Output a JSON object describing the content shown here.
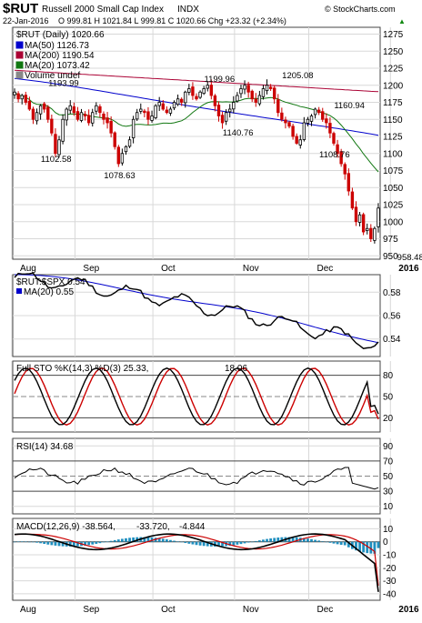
{
  "header": {
    "symbol": "$RUT",
    "name": "Russell 2000 Small Cap Index",
    "exchange": "INDX",
    "date": "22-Jan-2016",
    "ohlc": "O 999.81  H 1021.84  L 999.81  C 1020.66  Chg +23.32 (+2.34%)",
    "change_arrow": "▲",
    "watermark": "© StockCharts.com"
  },
  "chart_data": [
    {
      "type": "candlestick",
      "title": "$RUT (Daily) 1020.66",
      "legend": [
        {
          "name": "MA(50) 1126.73",
          "color": "#0000cc"
        },
        {
          "name": "MA(200) 1190.54",
          "color": "#aa0033"
        },
        {
          "name": "MA(20) 1073.42",
          "color": "#117711"
        },
        {
          "name": "Volume undef",
          "color": "#888888"
        }
      ],
      "legend_placement": "top-left",
      "ylim": [
        945,
        1285
      ],
      "yticks": [
        950,
        975,
        1000,
        1025,
        1050,
        1075,
        1100,
        1125,
        1150,
        1175,
        1200,
        1225,
        1250,
        1275
      ],
      "x_month_labels": [
        {
          "label": "Aug",
          "index": 0
        },
        {
          "label": "Sep",
          "index": 17
        },
        {
          "label": "Oct",
          "index": 38
        },
        {
          "label": "Nov",
          "index": 60
        },
        {
          "label": "Dec",
          "index": 80
        },
        {
          "label": "2016",
          "index": 102
        }
      ],
      "close": [
        1190,
        1180,
        1185,
        1175,
        1165,
        1150,
        1160,
        1170,
        1165,
        1150,
        1130,
        1100,
        1120,
        1150,
        1165,
        1170,
        1160,
        1150,
        1160,
        1155,
        1145,
        1160,
        1170,
        1160,
        1150,
        1145,
        1130,
        1110,
        1085,
        1100,
        1110,
        1120,
        1150,
        1160,
        1165,
        1160,
        1150,
        1155,
        1170,
        1175,
        1165,
        1160,
        1165,
        1175,
        1180,
        1175,
        1190,
        1195,
        1185,
        1180,
        1190,
        1195,
        1200,
        1185,
        1170,
        1155,
        1145,
        1160,
        1165,
        1175,
        1185,
        1195,
        1200,
        1190,
        1180,
        1175,
        1185,
        1195,
        1200,
        1195,
        1180,
        1160,
        1150,
        1145,
        1140,
        1125,
        1115,
        1120,
        1145,
        1150,
        1155,
        1165,
        1160,
        1150,
        1145,
        1130,
        1115,
        1100,
        1085,
        1070,
        1045,
        1020,
        1000,
        1010,
        985,
        990,
        975,
        990,
        1020
      ],
      "annotations": [
        {
          "label": "1193.99",
          "index": 13,
          "value": 1193.99,
          "pos": "above"
        },
        {
          "label": "1102.58",
          "index": 11,
          "value": 1102.58,
          "pos": "below"
        },
        {
          "label": "1078.63",
          "index": 28,
          "value": 1078.63,
          "pos": "below"
        },
        {
          "label": "1199.96",
          "index": 55,
          "value": 1199.96,
          "pos": "above"
        },
        {
          "label": "1140.76",
          "index": 60,
          "value": 1140.76,
          "pos": "below"
        },
        {
          "label": "1205.08",
          "index": 76,
          "value": 1205.08,
          "pos": "above"
        },
        {
          "label": "1108.76",
          "index": 86,
          "value": 1108.76,
          "pos": "below"
        },
        {
          "label": "1160.94",
          "index": 90,
          "value": 1160.94,
          "pos": "above"
        },
        {
          "label": "958.48",
          "index": 107,
          "value": 958.48,
          "pos": "below"
        }
      ],
      "ma50": {
        "start": 1210,
        "end": 1126.73
      },
      "ma200": {
        "start": 1222,
        "end": 1190.54
      },
      "ma20": {
        "start": 1215,
        "end": 1073.42
      }
    },
    {
      "type": "line",
      "title": "$RUT:$SPX 0.54",
      "legend": [
        {
          "name": "$RUT:$SPX 0.54",
          "color": "#000000"
        },
        {
          "name": "MA(20) 0.55",
          "color": "#0000cc"
        }
      ],
      "ylim": [
        0.525,
        0.595
      ],
      "yticks": [
        0.54,
        0.56,
        0.58
      ],
      "values_start": 0.592,
      "values_end": 0.535
    },
    {
      "type": "line",
      "title": "Full STO %K(14,3) %D(3) 25.33, 18.06",
      "legend": [
        {
          "name": "Full STO %K(14,3) %D(3) 25.33,",
          "color": "#000000"
        },
        {
          "name": "18.06",
          "color": "#cc0000"
        }
      ],
      "ylim": [
        0,
        100
      ],
      "yticks": [
        20,
        50,
        80
      ],
      "k_last": 25.33,
      "d_last": 18.06
    },
    {
      "type": "line",
      "title": "RSI(14) 34.68",
      "legend": [
        {
          "name": "RSI(14) 34.68",
          "color": "#000000"
        }
      ],
      "ylim": [
        0,
        100
      ],
      "yticks": [
        10,
        30,
        50,
        70,
        90
      ],
      "last": 34.68
    },
    {
      "type": "bar",
      "title": "MACD(12,26,9) -38.564, -33.720, -4.844",
      "legend": [
        {
          "name": "MACD(12,26,9) -38.564,",
          "color": "#000000"
        },
        {
          "name": "-33.720,",
          "color": "#cc0000"
        },
        {
          "name": "-4.844",
          "color": "#1f8fbf"
        }
      ],
      "ylim": [
        -45,
        18
      ],
      "yticks": [
        -40,
        -30,
        -20,
        -10,
        0,
        10
      ],
      "macd_last": -38.564,
      "signal_last": -33.72,
      "hist_last": -4.844
    }
  ],
  "bottom_axis": {
    "labels": [
      "Aug",
      "Sep",
      "Oct",
      "Nov",
      "Dec",
      "2016"
    ]
  }
}
